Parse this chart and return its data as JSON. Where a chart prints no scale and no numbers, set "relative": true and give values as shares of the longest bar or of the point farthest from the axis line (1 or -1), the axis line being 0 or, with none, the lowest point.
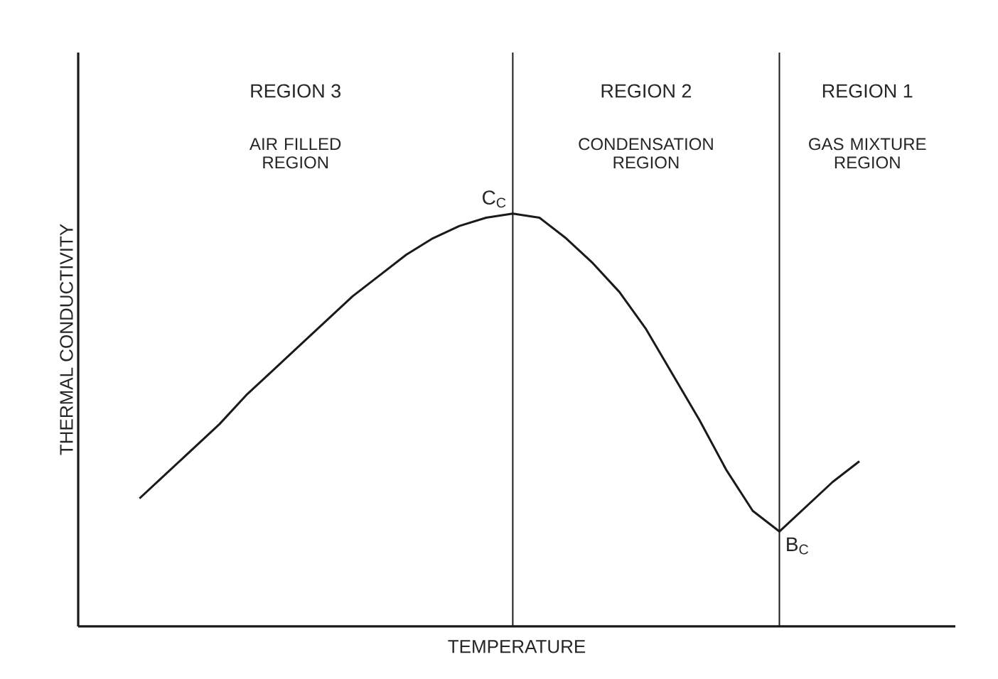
{
  "chart_data": {
    "type": "line",
    "relative": true,
    "xlabel": "TEMPERATURE",
    "ylabel": "THERMAL CONDUCTIVITY",
    "categories": [
      null,
      null,
      null,
      null,
      null,
      null,
      null,
      null,
      null,
      null,
      null,
      null,
      null,
      null,
      null,
      null,
      null,
      null,
      null,
      null,
      null,
      null,
      null,
      null,
      null,
      null,
      null,
      null
    ],
    "series": [
      {
        "color": "#1a1a1a",
        "values": [
          0.31,
          0.37,
          0.43,
          0.49,
          0.56,
          0.62,
          0.68,
          0.74,
          0.8,
          0.85,
          0.9,
          0.94,
          0.97,
          0.99,
          1,
          0.99,
          0.94,
          0.88,
          0.81,
          0.72,
          0.61,
          0.5,
          0.38,
          0.28,
          0.23,
          0.29,
          0.35,
          0.4
        ]
      }
    ],
    "annotations": [
      "REGION 3",
      "AIR FILLED REGION",
      "REGION 2",
      "CONDENSATION REGION",
      "REGION 1",
      "GAS MIXTURE REGION",
      {
        "text": "C$_{C}$",
        "y": 1
      },
      "B$_{C}$"
    ]
  }
}
